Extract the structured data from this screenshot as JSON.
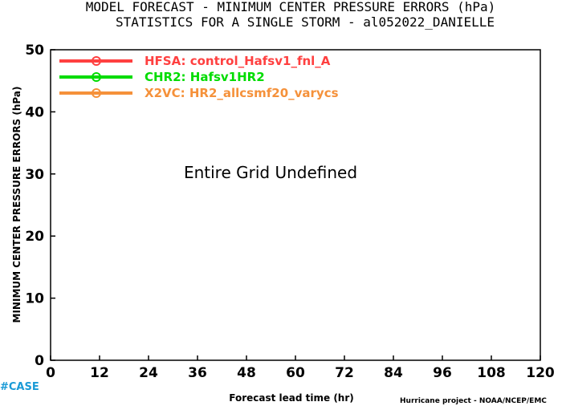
{
  "chart_data": {
    "type": "line",
    "title": "MODEL FORECAST - MINIMUM CENTER PRESSURE ERRORS (hPa)",
    "subtitle": "STATISTICS FOR A SINGLE STORM - al052022_DANIELLE",
    "xlabel": "Forecast lead time (hr)",
    "ylabel": "MINIMUM CENTER PRESSURE ERRORS (hPa)",
    "xlim": [
      0,
      120
    ],
    "ylim": [
      0,
      50
    ],
    "x_ticks": [
      0,
      12,
      24,
      36,
      48,
      60,
      72,
      84,
      96,
      108,
      120
    ],
    "y_ticks": [
      0,
      10,
      20,
      30,
      40,
      50
    ],
    "grid": false,
    "legend_position": "top-left",
    "series": [
      {
        "name": "HFSA: control_Hafsv1_fnl_A",
        "color": "#ff4040",
        "values": []
      },
      {
        "name": "CHR2: Hafsv1HR2",
        "color": "#00dc00",
        "values": []
      },
      {
        "name": "X2VC: HR2_allcsmf20_varycs",
        "color": "#f5913a",
        "values": []
      }
    ],
    "annotation": "Entire Grid Undefined"
  },
  "footer": {
    "case_tag": "#CASE",
    "credit": "Hurricane project - NOAA/NCEP/EMC"
  }
}
